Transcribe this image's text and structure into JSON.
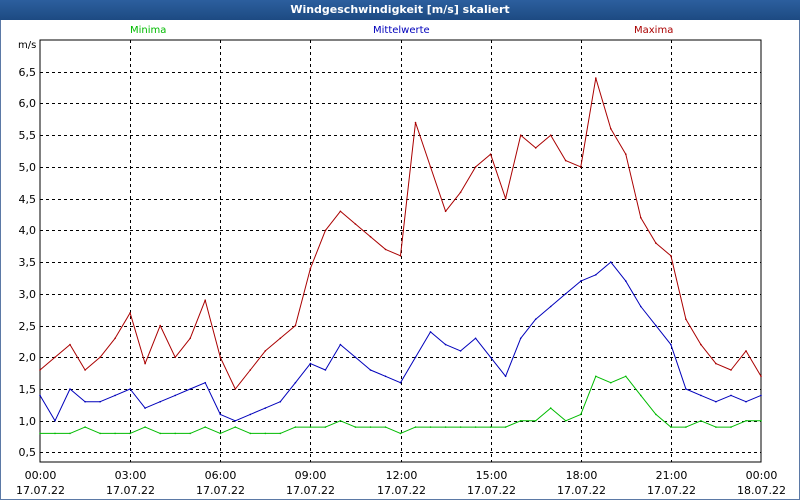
{
  "title": "Windgeschwindigkeit [m/s] skaliert",
  "colors": {
    "titlebar": "#1d4a82",
    "grid": "#000000",
    "minima": "#00bb00",
    "mittelwerte": "#0000bb",
    "maxima": "#aa0000"
  },
  "chart_data": {
    "type": "line",
    "title": "Windgeschwindigkeit [m/s] skaliert",
    "ylabel": "m/s",
    "xlabel": "",
    "ylim": [
      0.35,
      7.0
    ],
    "yticks": [
      "0,5",
      "1,0",
      "1,5",
      "2,0",
      "2,5",
      "3,0",
      "3,5",
      "4,0",
      "4,5",
      "5,0",
      "5,5",
      "6,0",
      "6,5"
    ],
    "ytick_values": [
      0.5,
      1.0,
      1.5,
      2.0,
      2.5,
      3.0,
      3.5,
      4.0,
      4.5,
      5.0,
      5.5,
      6.0,
      6.5
    ],
    "xlim": [
      0,
      24
    ],
    "xticks": [
      {
        "time": "00:00",
        "date": "17.07.22",
        "hour": 0
      },
      {
        "time": "03:00",
        "date": "17.07.22",
        "hour": 3
      },
      {
        "time": "06:00",
        "date": "17.07.22",
        "hour": 6
      },
      {
        "time": "09:00",
        "date": "17.07.22",
        "hour": 9
      },
      {
        "time": "12:00",
        "date": "17.07.22",
        "hour": 12
      },
      {
        "time": "15:00",
        "date": "17.07.22",
        "hour": 15
      },
      {
        "time": "18:00",
        "date": "17.07.22",
        "hour": 18
      },
      {
        "time": "21:00",
        "date": "17.07.22",
        "hour": 21
      },
      {
        "time": "00:00",
        "date": "18.07.22",
        "hour": 24
      }
    ],
    "grid": true,
    "series": [
      {
        "name": "Minima",
        "color": "#00bb00",
        "x": [
          0,
          0.5,
          1,
          1.5,
          2,
          2.5,
          3,
          3.5,
          4,
          4.5,
          5,
          5.5,
          6,
          6.5,
          7,
          7.5,
          8,
          8.5,
          9,
          9.5,
          10,
          10.5,
          11,
          11.5,
          12,
          12.5,
          13,
          13.5,
          14,
          14.5,
          15,
          15.5,
          16,
          16.5,
          17,
          17.5,
          18,
          18.5,
          19,
          19.5,
          20,
          20.5,
          21,
          21.5,
          22,
          22.5,
          23,
          23.5,
          24
        ],
        "y": [
          0.8,
          0.8,
          0.8,
          0.9,
          0.8,
          0.8,
          0.8,
          0.9,
          0.8,
          0.8,
          0.8,
          0.9,
          0.8,
          0.9,
          0.8,
          0.8,
          0.8,
          0.9,
          0.9,
          0.9,
          1.0,
          0.9,
          0.9,
          0.9,
          0.8,
          0.9,
          0.9,
          0.9,
          0.9,
          0.9,
          0.9,
          0.9,
          1.0,
          1.0,
          1.2,
          1.0,
          1.1,
          1.7,
          1.6,
          1.7,
          1.4,
          1.1,
          0.9,
          0.9,
          1.0,
          0.9,
          0.9,
          1.0,
          1.0
        ]
      },
      {
        "name": "Mittelwerte",
        "color": "#0000bb",
        "x": [
          0,
          0.5,
          1,
          1.5,
          2,
          2.5,
          3,
          3.5,
          4,
          4.5,
          5,
          5.5,
          6,
          6.5,
          7,
          7.5,
          8,
          8.5,
          9,
          9.5,
          10,
          10.5,
          11,
          11.5,
          12,
          12.5,
          13,
          13.5,
          14,
          14.5,
          15,
          15.5,
          16,
          16.5,
          17,
          17.5,
          18,
          18.5,
          19,
          19.5,
          20,
          20.5,
          21,
          21.5,
          22,
          22.5,
          23,
          23.5,
          24
        ],
        "y": [
          1.4,
          1.0,
          1.5,
          1.3,
          1.3,
          1.4,
          1.5,
          1.2,
          1.3,
          1.4,
          1.5,
          1.6,
          1.1,
          1.0,
          1.1,
          1.2,
          1.3,
          1.6,
          1.9,
          1.8,
          2.2,
          2.0,
          1.8,
          1.7,
          1.6,
          2.0,
          2.4,
          2.2,
          2.1,
          2.3,
          2.0,
          1.7,
          2.3,
          2.6,
          2.8,
          3.0,
          3.2,
          3.3,
          3.5,
          3.2,
          2.8,
          2.5,
          2.2,
          1.5,
          1.4,
          1.3,
          1.4,
          1.3,
          1.4
        ]
      },
      {
        "name": "Maxima",
        "color": "#aa0000",
        "x": [
          0,
          0.5,
          1,
          1.5,
          2,
          2.5,
          3,
          3.5,
          4,
          4.5,
          5,
          5.5,
          6,
          6.5,
          7,
          7.5,
          8,
          8.5,
          9,
          9.5,
          10,
          10.5,
          11,
          11.5,
          12,
          12.5,
          13,
          13.5,
          14,
          14.5,
          15,
          15.5,
          16,
          16.5,
          17,
          17.5,
          18,
          18.5,
          19,
          19.5,
          20,
          20.5,
          21,
          21.5,
          22,
          22.5,
          23,
          23.5,
          24
        ],
        "y": [
          1.8,
          2.0,
          2.2,
          1.8,
          2.0,
          2.3,
          2.7,
          1.9,
          2.5,
          2.0,
          2.3,
          2.9,
          2.0,
          1.5,
          1.8,
          2.1,
          2.3,
          2.5,
          3.4,
          4.0,
          4.3,
          4.1,
          3.9,
          3.7,
          3.6,
          5.7,
          5.0,
          4.3,
          4.6,
          5.0,
          5.2,
          4.5,
          5.5,
          5.3,
          5.5,
          5.1,
          5.0,
          6.4,
          5.6,
          5.2,
          4.2,
          3.8,
          3.6,
          2.6,
          2.2,
          1.9,
          1.8,
          2.1,
          1.7
        ]
      }
    ],
    "legend": [
      "Minima",
      "Mittelwerte",
      "Maxima"
    ]
  }
}
